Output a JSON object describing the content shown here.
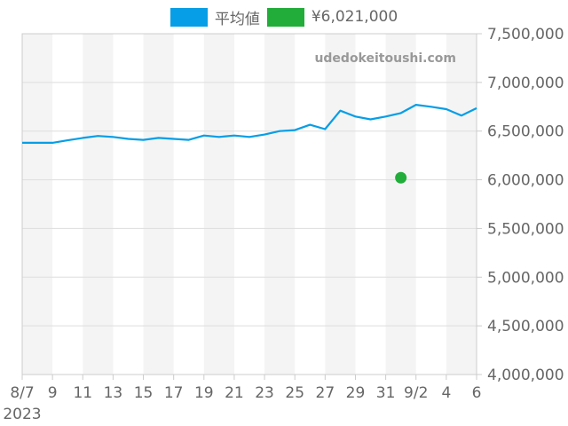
{
  "legend": {
    "items": [
      {
        "label": "平均値",
        "color": "#069ee6"
      },
      {
        "label": "¥6,021,000",
        "color": "#22ad3a"
      }
    ]
  },
  "watermark": "udedokeitoushi.com",
  "chart_data": {
    "type": "line",
    "title": "",
    "xlabel": "",
    "ylabel": "",
    "x_tick_labels": [
      "8/7",
      "9",
      "11",
      "13",
      "15",
      "17",
      "19",
      "21",
      "23",
      "25",
      "27",
      "29",
      "31",
      "9/2",
      "4",
      "6"
    ],
    "x_year_label": "2023",
    "y_tick_labels": [
      "7,500,000",
      "7,000,000",
      "6,500,000",
      "6,000,000",
      "5,500,000",
      "5,000,000",
      "4,500,000",
      "4,000,000"
    ],
    "ylim": [
      4000000,
      7500000
    ],
    "y_axis_position": "right",
    "grid": true,
    "legend_position": "top",
    "series": [
      {
        "name": "平均値",
        "type": "line",
        "color": "#069ee6",
        "x": [
          "2023-08-07",
          "2023-08-08",
          "2023-08-09",
          "2023-08-10",
          "2023-08-11",
          "2023-08-12",
          "2023-08-13",
          "2023-08-14",
          "2023-08-15",
          "2023-08-16",
          "2023-08-17",
          "2023-08-18",
          "2023-08-19",
          "2023-08-20",
          "2023-08-21",
          "2023-08-22",
          "2023-08-23",
          "2023-08-24",
          "2023-08-25",
          "2023-08-26",
          "2023-08-27",
          "2023-08-28",
          "2023-08-29",
          "2023-08-30",
          "2023-08-31",
          "2023-09-01",
          "2023-09-02",
          "2023-09-03",
          "2023-09-04",
          "2023-09-05",
          "2023-09-06"
        ],
        "values": [
          6380000,
          6380000,
          6380000,
          6405000,
          6430000,
          6450000,
          6440000,
          6420000,
          6410000,
          6430000,
          6420000,
          6410000,
          6455000,
          6440000,
          6455000,
          6440000,
          6465000,
          6500000,
          6510000,
          6565000,
          6520000,
          6710000,
          6650000,
          6620000,
          6650000,
          6685000,
          6770000,
          6750000,
          6725000,
          6660000,
          6735000
        ]
      },
      {
        "name": "¥6,021,000",
        "type": "scatter",
        "color": "#22ad3a",
        "x": [
          "2023-09-01"
        ],
        "values": [
          6021000
        ]
      }
    ]
  }
}
